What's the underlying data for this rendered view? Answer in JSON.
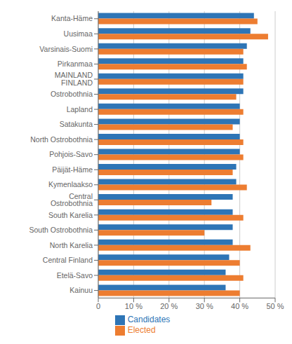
{
  "chart_data": {
    "type": "bar",
    "orientation": "horizontal",
    "categories": [
      "Kanta-Häme",
      "Uusimaa",
      "Varsinais-Suomi",
      "Pirkanmaa",
      "MAINLAND FINLAND",
      "Ostrobothnia",
      "Lapland",
      "Satakunta",
      "North Ostrobothnia",
      "Pohjois-Savo",
      "Päijät-Häme",
      "Kymenlaakso",
      "Central Ostrobothnia",
      "South Karelia",
      "South Ostrobothnia",
      "North Karelia",
      "Central Finland",
      "Etelä-Savo",
      "Kainuu"
    ],
    "series": [
      {
        "name": "Candidates",
        "color": "#2e75b6",
        "values": [
          44,
          43,
          42,
          41,
          41,
          41,
          40,
          40,
          40,
          40,
          39,
          39,
          38,
          38,
          38,
          38,
          37,
          36,
          36
        ]
      },
      {
        "name": "Elected",
        "color": "#ed7d31",
        "values": [
          45,
          48,
          41,
          42,
          41,
          39,
          41,
          38,
          41,
          41,
          38,
          42,
          32,
          41,
          30,
          43,
          40,
          41,
          40
        ]
      }
    ],
    "xlim": [
      0,
      50
    ],
    "xticks": [
      0,
      {
        "value": 10,
        "label": "10 %"
      },
      {
        "value": 20,
        "label": "20 %"
      },
      {
        "value": 30,
        "label": "30 %"
      },
      {
        "value": 40,
        "label": "40 %"
      },
      {
        "value": 50,
        "label": "50 %"
      }
    ],
    "grid": true,
    "legend": "bottom"
  }
}
